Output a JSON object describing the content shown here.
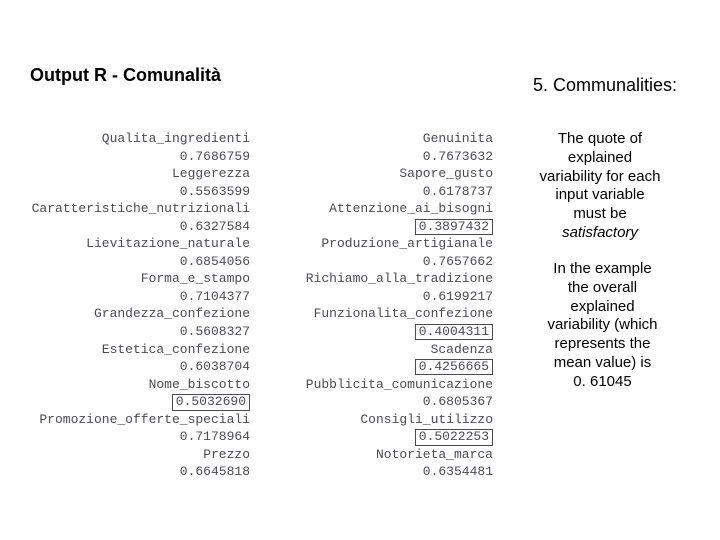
{
  "titles": {
    "left": "Output R - Comunalità",
    "right": "5. Communalities:"
  },
  "para1": {
    "line1": "The quote of",
    "line2": "explained",
    "line3": "variability for each",
    "line4": "input variable",
    "line5": "must be",
    "line6": "satisfactory"
  },
  "para2": {
    "line1": "In the example",
    "line2": "the overall",
    "line3": "explained",
    "line4": "variability  (which",
    "line5": "represents the",
    "line6": "mean value) is",
    "line7": "0. 61045"
  },
  "left_col": [
    {
      "label": "Qualita_ingredienti",
      "value": "0.7686759",
      "boxed": false
    },
    {
      "label": "Leggerezza",
      "value": "0.5563599",
      "boxed": false
    },
    {
      "label": "Caratteristiche_nutrizionali",
      "value": "0.6327584",
      "boxed": false
    },
    {
      "label": "Lievitazione_naturale",
      "value": "0.6854056",
      "boxed": false
    },
    {
      "label": "Forma_e_stampo",
      "value": "0.7104377",
      "boxed": false
    },
    {
      "label": "Grandezza_confezione",
      "value": "0.5608327",
      "boxed": false
    },
    {
      "label": "Estetica_confezione",
      "value": "0.6038704",
      "boxed": false
    },
    {
      "label": "Nome_biscotto",
      "value": "0.5032690",
      "boxed": true
    },
    {
      "label": "Promozione_offerte_speciali",
      "value": "0.7178964",
      "boxed": false
    },
    {
      "label": "Prezzo",
      "value": "0.6645818",
      "boxed": false
    }
  ],
  "right_col": [
    {
      "label": "Genuinita",
      "value": "0.7673632",
      "boxed": false
    },
    {
      "label": "Sapore_gusto",
      "value": "0.6178737",
      "boxed": false
    },
    {
      "label": "Attenzione_ai_bisogni",
      "value": "0.3897432",
      "boxed": true
    },
    {
      "label": "Produzione_artigianale",
      "value": "0.7657662",
      "boxed": false
    },
    {
      "label": "Richiamo_alla_tradizione",
      "value": "0.6199217",
      "boxed": false
    },
    {
      "label": "Funzionalita_confezione",
      "value": "0.4004311",
      "boxed": true
    },
    {
      "label": "Scadenza",
      "value": "0.4256665",
      "boxed": true
    },
    {
      "label": "Pubblicita_comunicazione",
      "value": "0.6805367",
      "boxed": false
    },
    {
      "label": "Consigli_utilizzo",
      "value": "0.5022253",
      "boxed": true
    },
    {
      "label": "Notorieta_marca",
      "value": "0.6354481",
      "boxed": false
    }
  ],
  "styling": {
    "bg_color": "#ffffff",
    "text_color": "#000000",
    "mono_color": "#4a4a55",
    "box_border_color": "#4a4a55",
    "title_fontsize": 18,
    "body_fontsize": 15,
    "mono_fontsize": 13,
    "font_body": "Arial",
    "font_mono": "Courier New"
  }
}
